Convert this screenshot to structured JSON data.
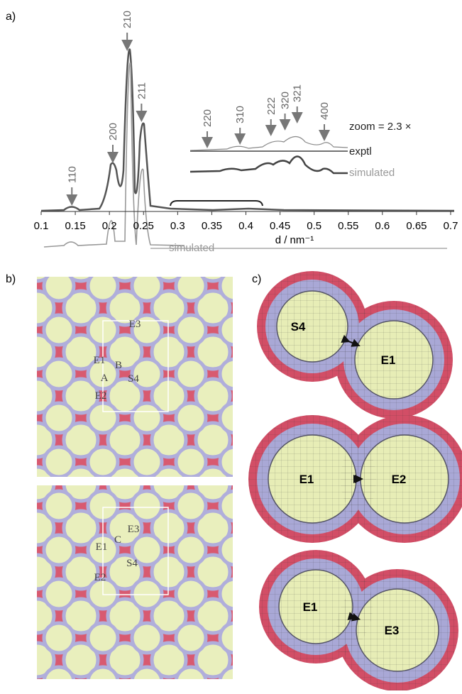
{
  "panel_a": {
    "label": "a)",
    "xticks": [
      0.1,
      0.15,
      0.2,
      0.25,
      0.3,
      0.35,
      0.4,
      0.45,
      0.5,
      0.55,
      0.6,
      0.65,
      0.7
    ],
    "xlim": [
      0.1,
      0.7
    ],
    "xlabel": "d / nm⁻¹",
    "peaks": [
      {
        "label": "110",
        "d": 0.145
      },
      {
        "label": "200",
        "d": 0.205
      },
      {
        "label": "210",
        "d": 0.226
      },
      {
        "label": "211",
        "d": 0.247
      }
    ],
    "inset_peaks": [
      {
        "label": "220",
        "d": 0.295
      },
      {
        "label": "310",
        "d": 0.33
      },
      {
        "label": "222",
        "d": 0.363
      },
      {
        "label": "320",
        "d": 0.378
      },
      {
        "label": "321",
        "d": 0.391
      },
      {
        "label": "400",
        "d": 0.42
      }
    ],
    "zoom": "zoom = 2.3 ×",
    "inset_exptl": "exptl",
    "inset_simulated": "simulated",
    "main_simulated": "simulated"
  },
  "panel_b": {
    "label": "b)",
    "top_labels": [
      "E3",
      "E1",
      "B",
      "A",
      "S4",
      "E2"
    ],
    "bottom_labels": [
      "E3",
      "E1",
      "C",
      "S4",
      "E2"
    ]
  },
  "panel_c": {
    "label": "c)",
    "pairs": [
      [
        "S4",
        "E1"
      ],
      [
        "E1",
        "E2"
      ],
      [
        "E1",
        "E3"
      ]
    ]
  }
}
